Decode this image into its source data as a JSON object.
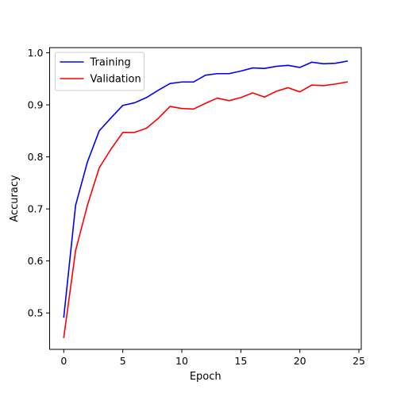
{
  "chart_data": {
    "type": "line",
    "title": "",
    "xlabel": "Epoch",
    "ylabel": "Accuracy",
    "xlim": [
      -1.2,
      25.2
    ],
    "ylim": [
      0.43,
      1.01
    ],
    "xticks": [
      0,
      5,
      10,
      15,
      20,
      25
    ],
    "yticks": [
      0.5,
      0.6,
      0.7,
      0.8,
      0.9,
      1.0
    ],
    "xtick_labels": [
      "0",
      "5",
      "10",
      "15",
      "20",
      "25"
    ],
    "ytick_labels": [
      "0.5",
      "0.6",
      "0.7",
      "0.8",
      "0.9",
      "1.0"
    ],
    "grid": false,
    "legend_position": "top-left",
    "x": [
      0,
      1,
      2,
      3,
      4,
      5,
      6,
      7,
      8,
      9,
      10,
      11,
      12,
      13,
      14,
      15,
      16,
      17,
      18,
      19,
      20,
      21,
      22,
      23,
      24
    ],
    "series": [
      {
        "name": "Training",
        "color": "#0000ff",
        "values": [
          0.492,
          0.707,
          0.79,
          0.85,
          0.875,
          0.899,
          0.904,
          0.914,
          0.928,
          0.941,
          0.944,
          0.944,
          0.957,
          0.96,
          0.96,
          0.965,
          0.971,
          0.97,
          0.974,
          0.976,
          0.972,
          0.982,
          0.979,
          0.98,
          0.984
        ]
      },
      {
        "name": "Validation",
        "color": "#ff0000",
        "values": [
          0.453,
          0.62,
          0.707,
          0.779,
          0.815,
          0.847,
          0.847,
          0.855,
          0.874,
          0.897,
          0.893,
          0.892,
          0.903,
          0.913,
          0.908,
          0.914,
          0.923,
          0.915,
          0.926,
          0.933,
          0.925,
          0.938,
          0.937,
          0.94,
          0.944
        ]
      }
    ]
  }
}
